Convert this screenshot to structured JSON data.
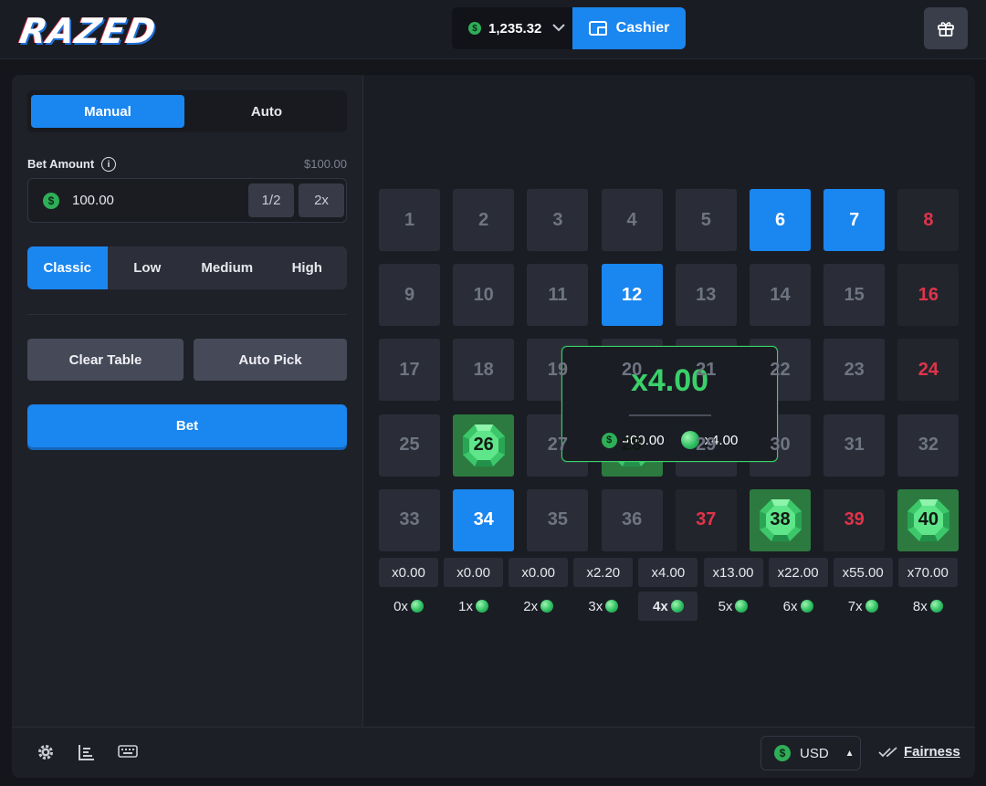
{
  "header": {
    "logo_text": "RAZED",
    "balance": "1,235.32",
    "cashier_label": "Cashier",
    "icons": [
      "dollar-coin-icon",
      "chevron-down-icon",
      "wallet-icon",
      "gift-icon"
    ]
  },
  "controls": {
    "tabs": [
      {
        "label": "Manual",
        "active": true
      },
      {
        "label": "Auto",
        "active": false
      }
    ],
    "bet_amount_label": "Bet Amount",
    "bet_max": "$100.00",
    "bet_value": "100.00",
    "half_label": "1/2",
    "double_label": "2x",
    "risk_levels": [
      {
        "label": "Classic",
        "active": true
      },
      {
        "label": "Low",
        "active": false
      },
      {
        "label": "Medium",
        "active": false
      },
      {
        "label": "High",
        "active": false
      }
    ],
    "clear_table_label": "Clear Table",
    "auto_pick_label": "Auto Pick",
    "bet_label": "Bet"
  },
  "board": {
    "tiles": [
      {
        "n": "1",
        "state": "idle"
      },
      {
        "n": "2",
        "state": "idle"
      },
      {
        "n": "3",
        "state": "idle"
      },
      {
        "n": "4",
        "state": "idle"
      },
      {
        "n": "5",
        "state": "idle"
      },
      {
        "n": "6",
        "state": "selected"
      },
      {
        "n": "7",
        "state": "selected"
      },
      {
        "n": "8",
        "state": "miss"
      },
      {
        "n": "9",
        "state": "idle"
      },
      {
        "n": "10",
        "state": "idle"
      },
      {
        "n": "11",
        "state": "idle"
      },
      {
        "n": "12",
        "state": "selected"
      },
      {
        "n": "13",
        "state": "idle"
      },
      {
        "n": "14",
        "state": "idle"
      },
      {
        "n": "15",
        "state": "idle"
      },
      {
        "n": "16",
        "state": "miss"
      },
      {
        "n": "17",
        "state": "idle"
      },
      {
        "n": "18",
        "state": "idle"
      },
      {
        "n": "19",
        "state": "idle"
      },
      {
        "n": "20",
        "state": "idle"
      },
      {
        "n": "21",
        "state": "idle"
      },
      {
        "n": "22",
        "state": "idle"
      },
      {
        "n": "23",
        "state": "idle"
      },
      {
        "n": "24",
        "state": "miss"
      },
      {
        "n": "25",
        "state": "idle"
      },
      {
        "n": "26",
        "state": "gem"
      },
      {
        "n": "27",
        "state": "idle"
      },
      {
        "n": "28",
        "state": "gem"
      },
      {
        "n": "29",
        "state": "idle"
      },
      {
        "n": "30",
        "state": "idle"
      },
      {
        "n": "31",
        "state": "idle"
      },
      {
        "n": "32",
        "state": "idle"
      },
      {
        "n": "33",
        "state": "idle"
      },
      {
        "n": "34",
        "state": "selected"
      },
      {
        "n": "35",
        "state": "idle"
      },
      {
        "n": "36",
        "state": "idle"
      },
      {
        "n": "37",
        "state": "miss"
      },
      {
        "n": "38",
        "state": "gem"
      },
      {
        "n": "39",
        "state": "miss"
      },
      {
        "n": "40",
        "state": "gem"
      }
    ],
    "multipliers": [
      "x0.00",
      "x0.00",
      "x0.00",
      "x2.20",
      "x4.00",
      "x13.00",
      "x22.00",
      "x55.00",
      "x70.00"
    ],
    "hit_counts": [
      "0x",
      "1x",
      "2x",
      "3x",
      "4x",
      "5x",
      "6x",
      "7x",
      "8x"
    ],
    "active_hit_index": 4
  },
  "popup": {
    "multiplier": "x4.00",
    "payout": "400.00",
    "gem_multiplier": "x4.00"
  },
  "footer": {
    "icons": [
      "settings-icon",
      "stats-icon",
      "keyboard-icon"
    ],
    "currency": "USD",
    "fairness_label": "Fairness"
  },
  "colors": {
    "accent": "#1a86f0",
    "win": "#3ad06a",
    "miss": "#e0344a",
    "gem_tile": "#2c7a40"
  }
}
